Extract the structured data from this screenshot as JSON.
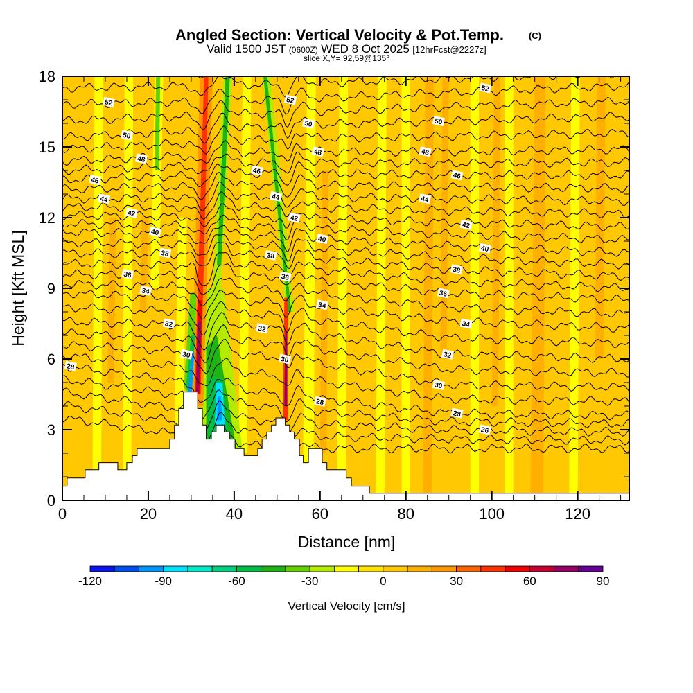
{
  "header": {
    "title": "Angled Section: Vertical Velocity & Pot.Temp.",
    "title_mark": "(C)",
    "valid_prefix": "Valid 1500 JST",
    "valid_utc": "(0600Z)",
    "valid_date": "WED 8 Oct 2025",
    "forecast": "[12hrFcst@2227z]",
    "slice": "slice X,Y= 92,59@135°"
  },
  "chart_data": {
    "type": "heatmap",
    "title": "Angled Section: Vertical Velocity & Pot.Temp.",
    "xlabel": "Distance [nm]",
    "ylabel": "Height [Kft MSL]",
    "xlim": [
      0,
      132
    ],
    "ylim": [
      0,
      18
    ],
    "xticks": [
      0,
      20,
      40,
      60,
      80,
      100,
      120
    ],
    "yticks": [
      0,
      3,
      6,
      9,
      12,
      15,
      18
    ],
    "colorbar": {
      "label": "Vertical Velocity [cm/s]",
      "min": -120,
      "max": 90,
      "step": 10,
      "tick_labels": [
        "-120",
        "-90",
        "-60",
        "-30",
        "0",
        "30",
        "60",
        "90"
      ],
      "colors": [
        "#0a14f0",
        "#0050f0",
        "#0096ff",
        "#00e1ff",
        "#00ebc8",
        "#00d282",
        "#00be46",
        "#1eb414",
        "#64d200",
        "#b4eb00",
        "#ffff00",
        "#ffe100",
        "#ffc800",
        "#ffaf00",
        "#ff9600",
        "#ff6400",
        "#ff3200",
        "#f00000",
        "#c80032",
        "#960064",
        "#640096"
      ]
    },
    "background_w": 5,
    "w_features": [
      {
        "w": -15,
        "pts": [
          [
            7,
            0
          ],
          [
            9,
            0
          ],
          [
            9.5,
            18
          ],
          [
            7.5,
            18
          ]
        ]
      },
      {
        "w": -15,
        "pts": [
          [
            14,
            0
          ],
          [
            16,
            0
          ],
          [
            16.5,
            18
          ],
          [
            14.5,
            18
          ]
        ]
      },
      {
        "w": 15,
        "pts": [
          [
            10.5,
            5
          ],
          [
            12,
            5
          ],
          [
            12.5,
            12
          ],
          [
            11,
            12
          ]
        ]
      },
      {
        "w": 15,
        "pts": [
          [
            18,
            8
          ],
          [
            19.5,
            8
          ],
          [
            20,
            12
          ],
          [
            18.5,
            12
          ]
        ]
      },
      {
        "w": -15,
        "pts": [
          [
            20.5,
            9
          ],
          [
            22.5,
            9
          ],
          [
            23.5,
            18
          ],
          [
            21.5,
            18
          ]
        ]
      },
      {
        "w": -35,
        "pts": [
          [
            21.5,
            14
          ],
          [
            22.5,
            14
          ],
          [
            22.8,
            18
          ],
          [
            21.8,
            18
          ]
        ]
      },
      {
        "w": -15,
        "pts": [
          [
            26,
            2
          ],
          [
            28,
            2
          ],
          [
            29,
            12
          ],
          [
            27,
            12
          ]
        ]
      },
      {
        "w": -15,
        "pts": [
          [
            41,
            2
          ],
          [
            43,
            2
          ],
          [
            44,
            18
          ],
          [
            42,
            18
          ]
        ]
      },
      {
        "w": -15,
        "pts": [
          [
            56,
            1
          ],
          [
            58.5,
            1
          ],
          [
            59,
            18
          ],
          [
            57,
            18
          ]
        ]
      },
      {
        "w": 15,
        "pts": [
          [
            60,
            2
          ],
          [
            61.5,
            2
          ],
          [
            62,
            14
          ],
          [
            60.5,
            14
          ]
        ]
      },
      {
        "w": -15,
        "pts": [
          [
            64,
            1
          ],
          [
            66,
            1
          ],
          [
            66.5,
            18
          ],
          [
            64.5,
            18
          ]
        ]
      },
      {
        "w": -15,
        "pts": [
          [
            73,
            0
          ],
          [
            75,
            0
          ],
          [
            75.5,
            18
          ],
          [
            73.5,
            18
          ]
        ]
      },
      {
        "w": -15,
        "pts": [
          [
            79,
            0
          ],
          [
            81,
            0
          ],
          [
            81,
            18
          ],
          [
            79,
            18
          ]
        ]
      },
      {
        "w": 15,
        "pts": [
          [
            84,
            0
          ],
          [
            86,
            0
          ],
          [
            86.5,
            18
          ],
          [
            84.5,
            18
          ]
        ]
      },
      {
        "w": 15,
        "pts": [
          [
            88,
            6
          ],
          [
            89.5,
            6
          ],
          [
            90,
            18
          ],
          [
            88.5,
            18
          ]
        ]
      },
      {
        "w": -15,
        "pts": [
          [
            95,
            0
          ],
          [
            97,
            0
          ],
          [
            97,
            18
          ],
          [
            95,
            18
          ]
        ]
      },
      {
        "w": 15,
        "pts": [
          [
            100,
            4
          ],
          [
            101.5,
            4
          ],
          [
            102,
            18
          ],
          [
            100.5,
            18
          ]
        ]
      },
      {
        "w": -15,
        "pts": [
          [
            103,
            0
          ],
          [
            105,
            0
          ],
          [
            105,
            18
          ],
          [
            103,
            18
          ]
        ]
      },
      {
        "w": 15,
        "pts": [
          [
            109,
            0
          ],
          [
            112,
            0
          ],
          [
            112.5,
            18
          ],
          [
            110,
            18
          ]
        ]
      },
      {
        "w": -15,
        "pts": [
          [
            118,
            0
          ],
          [
            120,
            0
          ],
          [
            120.5,
            18
          ],
          [
            118.5,
            18
          ]
        ]
      },
      {
        "w": 15,
        "pts": [
          [
            124,
            6
          ],
          [
            126,
            6
          ],
          [
            126.5,
            18
          ],
          [
            124.5,
            18
          ]
        ]
      },
      {
        "w": -25,
        "pts": [
          [
            32.5,
            2.5
          ],
          [
            42,
            2
          ],
          [
            37.5,
            9
          ],
          [
            33,
            9
          ]
        ]
      },
      {
        "w": -45,
        "pts": [
          [
            33.5,
            2.6
          ],
          [
            40.5,
            2.2
          ],
          [
            36,
            7
          ],
          [
            33.5,
            6.5
          ]
        ]
      },
      {
        "w": -55,
        "pts": [
          [
            34,
            2.6
          ],
          [
            39,
            2.4
          ],
          [
            37,
            5.2
          ],
          [
            34,
            5.2
          ]
        ]
      },
      {
        "w": -85,
        "pts": [
          [
            35.5,
            3.2
          ],
          [
            37.8,
            3.2
          ],
          [
            37.3,
            5
          ],
          [
            35.8,
            5
          ]
        ]
      },
      {
        "w": -100,
        "pts": [
          [
            36,
            3.4
          ],
          [
            37.2,
            3.4
          ],
          [
            36.9,
            4.4
          ],
          [
            36.2,
            4.4
          ]
        ]
      },
      {
        "w": -25,
        "pts": [
          [
            35,
            9
          ],
          [
            37,
            9
          ],
          [
            39.5,
            18
          ],
          [
            37.5,
            18
          ]
        ]
      },
      {
        "w": -45,
        "pts": [
          [
            36,
            10
          ],
          [
            37,
            10
          ],
          [
            39,
            18
          ],
          [
            38,
            18
          ]
        ]
      },
      {
        "w": 25,
        "pts": [
          [
            30,
            4
          ],
          [
            32.8,
            4
          ],
          [
            35,
            18
          ],
          [
            32,
            18
          ]
        ]
      },
      {
        "w": 45,
        "pts": [
          [
            30.8,
            4.5
          ],
          [
            32.2,
            4.5
          ],
          [
            34,
            18
          ],
          [
            33,
            18
          ]
        ]
      },
      {
        "w": 55,
        "pts": [
          [
            31,
            4.5
          ],
          [
            32,
            4.5
          ],
          [
            32.6,
            8.5
          ],
          [
            31.6,
            8.5
          ]
        ]
      },
      {
        "w": 75,
        "pts": [
          [
            31.1,
            4.6
          ],
          [
            31.8,
            4.6
          ],
          [
            32.3,
            7.6
          ],
          [
            31.6,
            7.6
          ]
        ]
      },
      {
        "w": -35,
        "pts": [
          [
            28.3,
            4.8
          ],
          [
            30,
            4.3
          ],
          [
            31.2,
            8.8
          ],
          [
            29.8,
            8.8
          ]
        ]
      },
      {
        "w": -55,
        "pts": [
          [
            28.8,
            4.8
          ],
          [
            30,
            4.4
          ],
          [
            30.9,
            7
          ],
          [
            30,
            7
          ]
        ]
      },
      {
        "w": -95,
        "pts": [
          [
            29.3,
            4.6
          ],
          [
            30.1,
            4.4
          ],
          [
            30.7,
            6.3
          ],
          [
            30.1,
            6.3
          ]
        ]
      },
      {
        "w": -25,
        "pts": [
          [
            52,
            8
          ],
          [
            54,
            8
          ],
          [
            48.5,
            18
          ],
          [
            46.5,
            18
          ]
        ]
      },
      {
        "w": -45,
        "pts": [
          [
            52.6,
            8
          ],
          [
            53.3,
            8
          ],
          [
            47.6,
            18
          ],
          [
            46.8,
            18
          ]
        ]
      },
      {
        "w": 45,
        "pts": [
          [
            51.3,
            3.4
          ],
          [
            52.6,
            3.4
          ],
          [
            52.6,
            8.6
          ],
          [
            51.7,
            8.6
          ]
        ]
      },
      {
        "w": 75,
        "pts": [
          [
            51.7,
            4
          ],
          [
            52.3,
            4
          ],
          [
            52.3,
            7.2
          ],
          [
            51.9,
            7.2
          ]
        ]
      }
    ],
    "theta_anchor_x": [
      0,
      50,
      90,
      132
    ],
    "theta_anchors": {
      "24": [
        3.5,
        2.2,
        2.2,
        2.2
      ],
      "26": [
        4.6,
        3.3,
        3.0,
        2.9
      ],
      "28": [
        5.7,
        4.5,
        3.7,
        3.6
      ],
      "30": [
        6.6,
        6.1,
        4.9,
        4.8
      ],
      "32": [
        7.6,
        7.3,
        6.2,
        6.0
      ],
      "34": [
        8.8,
        8.4,
        7.6,
        7.3
      ],
      "36": [
        9.6,
        9.5,
        8.8,
        8.5
      ],
      "38": [
        10.5,
        10.4,
        9.8,
        9.5
      ],
      "40": [
        11.4,
        11.2,
        10.8,
        10.5
      ],
      "42": [
        12.1,
        12.0,
        11.8,
        11.6
      ],
      "44": [
        12.8,
        12.9,
        12.8,
        12.7
      ],
      "46": [
        13.6,
        13.9,
        13.8,
        13.8
      ],
      "48": [
        14.4,
        14.8,
        14.8,
        14.9
      ],
      "50": [
        15.4,
        15.9,
        16.1,
        16.3
      ],
      "52": [
        16.8,
        17.0,
        17.3,
        17.6
      ],
      "54": [
        18.2,
        18.3,
        18.5,
        18.7
      ]
    },
    "theta_labels": [
      {
        "text": "52",
        "x": 10.8,
        "y": 16.9
      },
      {
        "text": "52",
        "x": 53.1,
        "y": 17.0
      },
      {
        "text": "52",
        "x": 98.5,
        "y": 17.5
      },
      {
        "text": "50",
        "x": 15,
        "y": 15.5
      },
      {
        "text": "50",
        "x": 57.3,
        "y": 16.0
      },
      {
        "text": "50",
        "x": 87.6,
        "y": 16.1
      },
      {
        "text": "48",
        "x": 18.4,
        "y": 14.5
      },
      {
        "text": "48",
        "x": 59.5,
        "y": 14.8
      },
      {
        "text": "48",
        "x": 84.5,
        "y": 14.8
      },
      {
        "text": "46",
        "x": 7.6,
        "y": 13.6
      },
      {
        "text": "46",
        "x": 45.3,
        "y": 14.0
      },
      {
        "text": "46",
        "x": 91.9,
        "y": 13.8
      },
      {
        "text": "44",
        "x": 9.7,
        "y": 12.8
      },
      {
        "text": "44",
        "x": 49.7,
        "y": 12.9
      },
      {
        "text": "44",
        "x": 84.4,
        "y": 12.8
      },
      {
        "text": "42",
        "x": 16.1,
        "y": 12.2
      },
      {
        "text": "42",
        "x": 54,
        "y": 12.0
      },
      {
        "text": "42",
        "x": 94,
        "y": 11.7
      },
      {
        "text": "40",
        "x": 21.6,
        "y": 11.4
      },
      {
        "text": "40",
        "x": 60.5,
        "y": 11.1
      },
      {
        "text": "40",
        "x": 98.4,
        "y": 10.7
      },
      {
        "text": "38",
        "x": 23.9,
        "y": 10.5
      },
      {
        "text": "38",
        "x": 48.5,
        "y": 10.4
      },
      {
        "text": "38",
        "x": 91.8,
        "y": 9.8
      },
      {
        "text": "36",
        "x": 15.2,
        "y": 9.6
      },
      {
        "text": "36",
        "x": 51.9,
        "y": 9.5
      },
      {
        "text": "36",
        "x": 88.7,
        "y": 8.8
      },
      {
        "text": "34",
        "x": 19.4,
        "y": 8.9
      },
      {
        "text": "34",
        "x": 60.5,
        "y": 8.3
      },
      {
        "text": "34",
        "x": 94,
        "y": 7.5
      },
      {
        "text": "32",
        "x": 24.8,
        "y": 7.5
      },
      {
        "text": "32",
        "x": 46.5,
        "y": 7.3
      },
      {
        "text": "32",
        "x": 89.7,
        "y": 6.2
      },
      {
        "text": "30",
        "x": 28.9,
        "y": 6.2
      },
      {
        "text": "30",
        "x": 51.8,
        "y": 6.0
      },
      {
        "text": "30",
        "x": 87.6,
        "y": 4.9
      },
      {
        "text": "28",
        "x": 1.9,
        "y": 5.7
      },
      {
        "text": "28",
        "x": 60,
        "y": 4.2
      },
      {
        "text": "28",
        "x": 91.9,
        "y": 3.7
      },
      {
        "text": "26",
        "x": 98.4,
        "y": 3.0
      }
    ],
    "terrain_steps": [
      [
        0,
        0.6
      ],
      [
        1.1,
        0.95
      ],
      [
        5.3,
        1.3
      ],
      [
        8.5,
        1.6
      ],
      [
        12.9,
        1.3
      ],
      [
        15,
        1.6
      ],
      [
        16.3,
        1.9
      ],
      [
        17.4,
        2.2
      ],
      [
        25,
        2.6
      ],
      [
        26.1,
        3.2
      ],
      [
        27.1,
        3.9
      ],
      [
        28.2,
        4.6
      ],
      [
        31.5,
        3.9
      ],
      [
        32.6,
        3.2
      ],
      [
        33.5,
        2.6
      ],
      [
        34.7,
        2.9
      ],
      [
        35.8,
        3.2
      ],
      [
        37.7,
        2.9
      ],
      [
        39,
        2.6
      ],
      [
        40.2,
        2.2
      ],
      [
        42.3,
        1.9
      ],
      [
        45.5,
        2.2
      ],
      [
        46.5,
        2.6
      ],
      [
        47.6,
        2.9
      ],
      [
        48.7,
        3.2
      ],
      [
        49.7,
        3.5
      ],
      [
        51.9,
        3.2
      ],
      [
        52.9,
        2.9
      ],
      [
        54,
        2.6
      ],
      [
        55.2,
        1.9
      ],
      [
        56.1,
        1.6
      ],
      [
        57.3,
        2.2
      ],
      [
        60.5,
        1.6
      ],
      [
        61.6,
        1.3
      ],
      [
        66.1,
        0.95
      ],
      [
        67.3,
        0.6
      ],
      [
        71.5,
        0.3
      ]
    ]
  }
}
